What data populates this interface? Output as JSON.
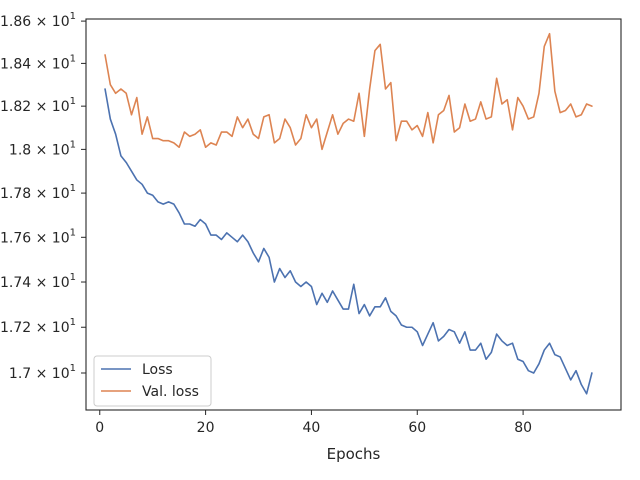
{
  "chart_data": {
    "type": "line",
    "title": "",
    "xlabel": "Epochs",
    "ylabel": "",
    "xlim": [
      -2.6,
      98.5
    ],
    "ylim": [
      16.84,
      18.61
    ],
    "x_ticks": [
      {
        "value": 0,
        "label": "0"
      },
      {
        "value": 20,
        "label": "20"
      },
      {
        "value": 40,
        "label": "40"
      },
      {
        "value": 60,
        "label": "60"
      },
      {
        "value": 80,
        "label": "80"
      }
    ],
    "y_ticks": [
      {
        "value": 17.0,
        "label": "1.7 × 10",
        "exp": "1"
      },
      {
        "value": 17.2,
        "label": "1.72 × 10",
        "exp": "1"
      },
      {
        "value": 17.4,
        "label": "1.74 × 10",
        "exp": "1"
      },
      {
        "value": 17.6,
        "label": "1.76 × 10",
        "exp": "1"
      },
      {
        "value": 17.8,
        "label": "1.78 × 10",
        "exp": "1"
      },
      {
        "value": 18.0,
        "label": "1.8 × 10",
        "exp": "1"
      },
      {
        "value": 18.2,
        "label": "1.82 × 10",
        "exp": "1"
      },
      {
        "value": 18.4,
        "label": "1.84 × 10",
        "exp": "1"
      },
      {
        "value": 18.6,
        "label": "1.86 × 10",
        "exp": "1"
      }
    ],
    "y_scale": "log",
    "grid": false,
    "legend_position": "lower-left",
    "series": [
      {
        "name": "Loss",
        "color": "#4c72b0",
        "x_start": 1,
        "values": [
          18.28,
          18.14,
          18.07,
          17.97,
          17.94,
          17.9,
          17.86,
          17.84,
          17.8,
          17.79,
          17.76,
          17.75,
          17.76,
          17.75,
          17.71,
          17.66,
          17.66,
          17.65,
          17.68,
          17.66,
          17.61,
          17.61,
          17.59,
          17.62,
          17.6,
          17.58,
          17.61,
          17.58,
          17.53,
          17.49,
          17.55,
          17.51,
          17.4,
          17.46,
          17.42,
          17.45,
          17.4,
          17.38,
          17.4,
          17.38,
          17.3,
          17.35,
          17.31,
          17.36,
          17.32,
          17.28,
          17.28,
          17.39,
          17.26,
          17.3,
          17.25,
          17.29,
          17.29,
          17.33,
          17.27,
          17.25,
          17.21,
          17.2,
          17.2,
          17.18,
          17.12,
          17.17,
          17.22,
          17.14,
          17.16,
          17.19,
          17.18,
          17.13,
          17.18,
          17.1,
          17.1,
          17.13,
          17.06,
          17.09,
          17.17,
          17.14,
          17.12,
          17.13,
          17.06,
          17.05,
          17.01,
          17.0,
          17.04,
          17.1,
          17.13,
          17.08,
          17.07,
          17.02,
          16.97,
          17.01,
          16.95,
          16.91,
          17.0
        ]
      },
      {
        "name": "Val. loss",
        "color": "#dd8452",
        "x_start": 1,
        "values": [
          18.44,
          18.3,
          18.26,
          18.28,
          18.26,
          18.16,
          18.24,
          18.07,
          18.15,
          18.05,
          18.05,
          18.04,
          18.04,
          18.03,
          18.01,
          18.08,
          18.06,
          18.07,
          18.09,
          18.01,
          18.03,
          18.02,
          18.08,
          18.08,
          18.06,
          18.15,
          18.1,
          18.14,
          18.07,
          18.05,
          18.15,
          18.16,
          18.03,
          18.05,
          18.14,
          18.1,
          18.02,
          18.05,
          18.16,
          18.1,
          18.14,
          18.0,
          18.08,
          18.16,
          18.07,
          18.12,
          18.14,
          18.13,
          18.26,
          18.06,
          18.28,
          18.46,
          18.49,
          18.28,
          18.31,
          18.04,
          18.13,
          18.13,
          18.09,
          18.11,
          18.06,
          18.17,
          18.03,
          18.16,
          18.18,
          18.25,
          18.08,
          18.1,
          18.21,
          18.13,
          18.14,
          18.22,
          18.14,
          18.15,
          18.33,
          18.21,
          18.23,
          18.09,
          18.24,
          18.2,
          18.14,
          18.15,
          18.26,
          18.48,
          18.54,
          18.27,
          18.17,
          18.18,
          18.21,
          18.15,
          18.16,
          18.21,
          18.2
        ]
      }
    ]
  }
}
